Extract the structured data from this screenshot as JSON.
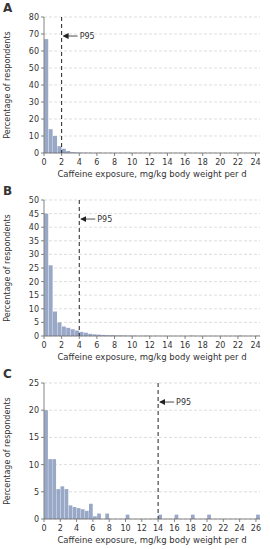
{
  "chart_data": [
    {
      "type": "histogram",
      "title": "A",
      "bins": [
        0,
        0.5,
        1,
        1.5,
        2,
        2.5,
        3,
        3.5,
        4,
        4.5,
        5,
        5.5,
        6,
        6.5,
        7,
        7.5,
        8,
        8.5,
        9,
        9.5,
        10,
        10.5,
        11,
        11.5,
        12,
        12.5,
        13,
        13.5,
        14,
        14.5,
        15,
        15.5,
        16,
        16.5,
        17,
        17.5,
        18,
        18.5,
        19,
        19.5,
        20,
        20.5,
        21,
        21.5,
        22,
        22.5,
        23,
        23.5,
        24
      ],
      "values": [
        67,
        14,
        10,
        4,
        2.5,
        1.2,
        0.5,
        0.3,
        0.15,
        0.1,
        0.05,
        0,
        0.1,
        0,
        0,
        0,
        0,
        0,
        0,
        0,
        0,
        0,
        0,
        0,
        0,
        0,
        0,
        0,
        0,
        0,
        0,
        0,
        0,
        0,
        0,
        0,
        0,
        0,
        0,
        0,
        0,
        0,
        0,
        0,
        0,
        0,
        0,
        0
      ],
      "color": "#9aa8c8",
      "xlim": [
        0,
        24.5
      ],
      "xticks": [
        0,
        2,
        4,
        6,
        8,
        10,
        12,
        14,
        16,
        18,
        20,
        22,
        24
      ],
      "ylim": [
        0,
        80
      ],
      "yticks": [
        0,
        10,
        20,
        30,
        40,
        50,
        60,
        70,
        80
      ],
      "grid": true,
      "xlabel": "Caffeine exposure, mg/kg body weight per d",
      "ylabel": "Percentage of respondents",
      "annotations": [
        {
          "text": "P95",
          "x": 2.0
        }
      ]
    },
    {
      "type": "histogram",
      "title": "B",
      "bins": [
        0,
        0.5,
        1,
        1.5,
        2,
        2.5,
        3,
        3.5,
        4,
        4.5,
        5,
        5.5,
        6,
        6.5,
        7,
        7.5,
        8,
        8.5,
        9,
        9.5,
        10,
        10.5,
        11,
        11.5,
        12,
        12.5,
        13,
        13.5,
        14,
        14.5,
        15,
        15.5,
        16,
        16.5,
        17,
        17.5,
        18,
        18.5,
        19,
        19.5,
        20,
        20.5,
        21,
        21.5,
        22,
        22.5,
        23,
        23.5,
        24,
        24.5
      ],
      "values": [
        45,
        26,
        9,
        5,
        3.5,
        3,
        2.5,
        2,
        1.5,
        1.2,
        0.8,
        0.6,
        0.5,
        0.4,
        0.3,
        0.3,
        0.2,
        0.2,
        0.15,
        0.1,
        0.1,
        0.05,
        0.05,
        0.1,
        0,
        0.05,
        0,
        0,
        0,
        0,
        0,
        0,
        0,
        0.1,
        0,
        0,
        0,
        0,
        0,
        0,
        0,
        0,
        0,
        0,
        0.1,
        0,
        0,
        0,
        0.1
      ],
      "color": "#9aa8c8",
      "xlim": [
        0,
        24.5
      ],
      "xticks": [
        0,
        2,
        4,
        6,
        8,
        10,
        12,
        14,
        16,
        18,
        20,
        22,
        24
      ],
      "ylim": [
        0,
        50
      ],
      "yticks": [
        0,
        5,
        10,
        15,
        20,
        25,
        30,
        35,
        40,
        45,
        50
      ],
      "grid": true,
      "xlabel": "Caffeine exposure, mg/kg body weight per d",
      "ylabel": "Percentage of respondents",
      "annotations": [
        {
          "text": "P95",
          "x": 4.0
        }
      ]
    },
    {
      "type": "histogram",
      "title": "C",
      "bins": [
        0,
        0.5,
        1,
        1.5,
        2,
        2.5,
        3,
        3.5,
        4,
        4.5,
        5,
        5.5,
        6,
        6.5,
        7,
        7.5,
        8,
        8.5,
        9,
        9.5,
        10,
        10.5,
        11,
        11.5,
        12,
        12.5,
        13,
        13.5,
        14,
        14.5,
        15,
        15.5,
        16,
        16.5,
        17,
        17.5,
        18,
        18.5,
        19,
        19.5,
        20,
        20.5,
        21,
        21.5,
        22,
        22.5,
        23,
        23.5,
        24,
        24.5,
        25,
        25.5,
        26,
        26.5
      ],
      "values": [
        20,
        11,
        11,
        5.5,
        6,
        5.5,
        2.5,
        2.2,
        2.0,
        1.8,
        1.5,
        2.8,
        0.5,
        1.0,
        0,
        1.0,
        0,
        0,
        0,
        0,
        0.8,
        0,
        0,
        0,
        0,
        0,
        0,
        0,
        0.8,
        0,
        0,
        0,
        0.8,
        0,
        0,
        0,
        0.8,
        0,
        0,
        0,
        0.8,
        0,
        0,
        0,
        0,
        0,
        0,
        0,
        0,
        0,
        0,
        0,
        0.8
      ],
      "color": "#9aa8c8",
      "xlim": [
        0,
        26.5
      ],
      "xticks": [
        0,
        2,
        4,
        6,
        8,
        10,
        12,
        14,
        16,
        18,
        20,
        22,
        24,
        26
      ],
      "ylim": [
        0,
        25
      ],
      "yticks": [
        0,
        5,
        10,
        15,
        20,
        25
      ],
      "grid": true,
      "xlabel": "Caffeine exposure, mg/kg body weight per d",
      "ylabel": "Percentage of respondents",
      "annotations": [
        {
          "text": "P95",
          "x": 14.0
        }
      ]
    }
  ]
}
